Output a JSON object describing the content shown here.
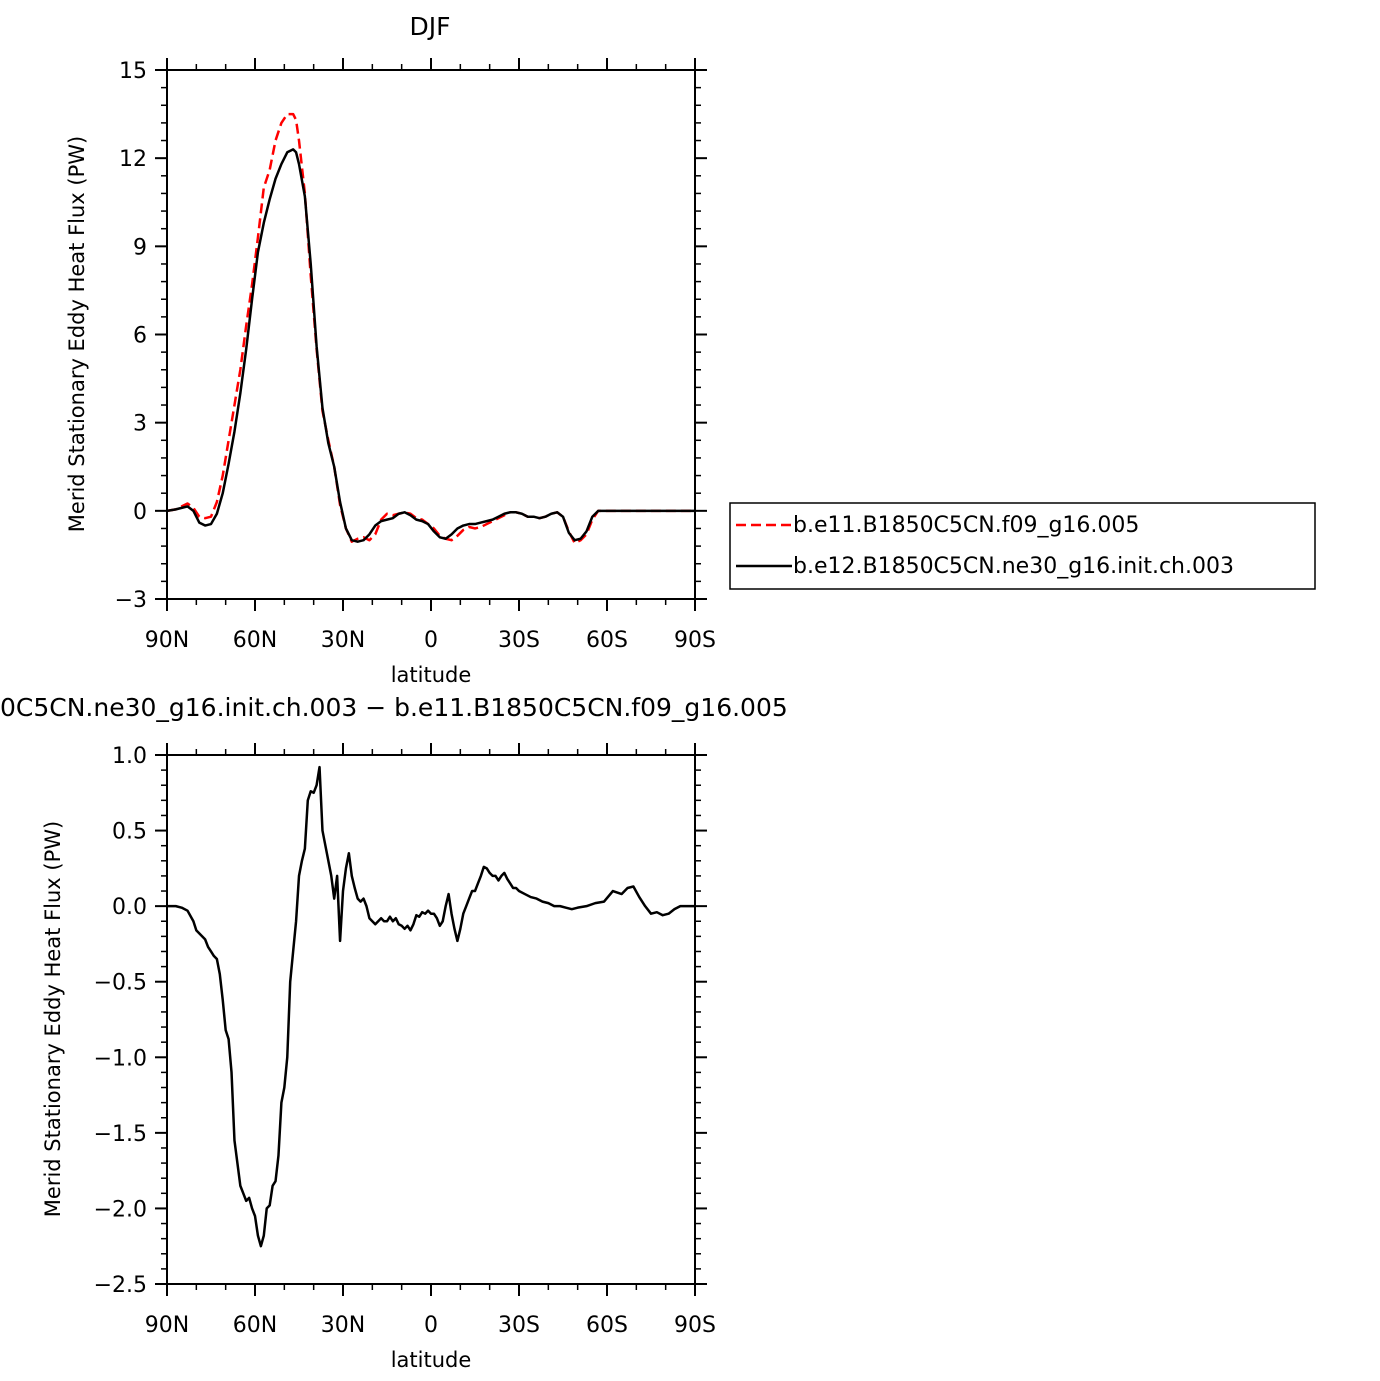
{
  "chart_data": [
    {
      "type": "line",
      "title": "DJF",
      "xlabel": "latitude",
      "ylabel": "Merid Stationary Eddy Heat Flux (PW)",
      "xlim": [
        90,
        -90
      ],
      "ylim": [
        -3,
        15
      ],
      "x_ticks": [
        90,
        60,
        30,
        0,
        -30,
        -60,
        -90
      ],
      "x_tick_labels": [
        "90N",
        "60N",
        "30N",
        "0",
        "30S",
        "60S",
        "90S"
      ],
      "y_ticks": [
        -3,
        0,
        3,
        6,
        9,
        12,
        15
      ],
      "y_tick_labels": [
        "−3",
        "0",
        "3",
        "6",
        "9",
        "12",
        "15"
      ],
      "legend_position": "right",
      "series": [
        {
          "name": "b.e11.B1850C5CN.f09_g16.005",
          "color": "#ff0000",
          "dash": "dashed",
          "x": [
            90,
            87,
            85,
            83,
            81,
            79,
            77,
            75,
            73,
            71,
            69,
            67,
            65,
            63,
            61,
            59,
            57,
            55,
            53,
            51,
            49,
            47,
            46,
            45,
            43,
            41,
            39,
            37,
            35,
            33,
            31,
            29,
            27,
            25,
            23,
            21,
            19,
            17,
            15,
            13,
            11,
            9,
            7,
            5,
            3,
            1,
            -1,
            -3,
            -5,
            -7,
            -9,
            -11,
            -13,
            -15,
            -17,
            -19,
            -21,
            -23,
            -25,
            -27,
            -29,
            -31,
            -33,
            -35,
            -37,
            -39,
            -41,
            -43,
            -45,
            -47,
            -49,
            -51,
            -53,
            -55,
            -57,
            -59,
            -61,
            -63,
            -65,
            -67,
            -69,
            -71,
            -73,
            -75,
            -77,
            -79,
            -81,
            -83,
            -85,
            -87,
            -90
          ],
          "y": [
            0.0,
            0.05,
            0.15,
            0.25,
            0.1,
            -0.2,
            -0.25,
            -0.2,
            0.3,
            1.2,
            2.4,
            3.6,
            4.8,
            6.3,
            7.7,
            9.3,
            11.0,
            11.6,
            12.6,
            13.2,
            13.5,
            13.5,
            13.3,
            12.6,
            10.8,
            8.0,
            5.5,
            3.4,
            2.4,
            1.5,
            0.2,
            -0.6,
            -1.05,
            -0.95,
            -0.9,
            -1.0,
            -0.8,
            -0.3,
            -0.1,
            -0.15,
            -0.1,
            -0.05,
            -0.1,
            -0.25,
            -0.3,
            -0.45,
            -0.6,
            -0.85,
            -0.95,
            -1.0,
            -0.85,
            -0.65,
            -0.55,
            -0.6,
            -0.55,
            -0.45,
            -0.35,
            -0.25,
            -0.15,
            -0.05,
            -0.05,
            -0.1,
            -0.2,
            -0.2,
            -0.25,
            -0.2,
            -0.1,
            -0.05,
            -0.2,
            -0.7,
            -1.1,
            -1.0,
            -0.8,
            -0.3,
            0.0,
            0.0,
            0.0,
            0.0,
            0.0,
            0.0,
            0.0,
            0.0,
            0.0,
            0.0,
            0.0,
            0.0,
            0.0,
            0.0,
            0.0,
            0.0,
            0.0
          ]
        },
        {
          "name": "b.e12.B1850C5CN.ne30_g16.init.ch.003",
          "color": "#000000",
          "dash": "solid",
          "x": [
            90,
            87,
            85,
            83,
            81,
            79,
            77,
            75,
            73,
            71,
            69,
            67,
            65,
            63,
            61,
            59,
            57,
            55,
            53,
            51,
            49,
            47,
            46,
            45,
            43,
            41,
            39,
            37,
            35,
            33,
            31,
            29,
            27,
            25,
            23,
            21,
            19,
            17,
            15,
            13,
            11,
            9,
            7,
            5,
            3,
            1,
            -1,
            -3,
            -5,
            -7,
            -9,
            -11,
            -13,
            -15,
            -17,
            -19,
            -21,
            -23,
            -25,
            -27,
            -29,
            -31,
            -33,
            -35,
            -37,
            -39,
            -41,
            -43,
            -45,
            -47,
            -49,
            -51,
            -53,
            -55,
            -57,
            -59,
            -61,
            -63,
            -65,
            -67,
            -69,
            -71,
            -73,
            -75,
            -77,
            -79,
            -81,
            -83,
            -85,
            -87,
            -90
          ],
          "y": [
            0.0,
            0.05,
            0.1,
            0.15,
            0.0,
            -0.4,
            -0.5,
            -0.45,
            -0.1,
            0.6,
            1.6,
            2.7,
            4.0,
            5.5,
            7.2,
            8.8,
            9.8,
            10.6,
            11.3,
            11.8,
            12.2,
            12.3,
            12.2,
            11.8,
            10.7,
            8.4,
            5.6,
            3.5,
            2.3,
            1.5,
            0.3,
            -0.6,
            -1.0,
            -1.05,
            -1.0,
            -0.8,
            -0.5,
            -0.35,
            -0.3,
            -0.25,
            -0.1,
            -0.05,
            -0.15,
            -0.3,
            -0.35,
            -0.45,
            -0.7,
            -0.9,
            -0.95,
            -0.8,
            -0.6,
            -0.5,
            -0.45,
            -0.45,
            -0.4,
            -0.35,
            -0.3,
            -0.2,
            -0.1,
            -0.05,
            -0.05,
            -0.1,
            -0.2,
            -0.2,
            -0.25,
            -0.2,
            -0.1,
            -0.05,
            -0.2,
            -0.75,
            -1.0,
            -0.95,
            -0.7,
            -0.2,
            0.0,
            0.0,
            0.0,
            0.0,
            0.0,
            0.0,
            0.0,
            0.0,
            0.0,
            0.0,
            0.0,
            0.0,
            0.0,
            0.0,
            0.0,
            0.0,
            0.0
          ]
        }
      ]
    },
    {
      "type": "line",
      "title": "0C5CN.ne30_g16.init.ch.003 − b.e11.B1850C5CN.f09_g16.005",
      "xlabel": "latitude",
      "ylabel": "Merid Stationary Eddy Heat Flux (PW)",
      "xlim": [
        90,
        -90
      ],
      "ylim": [
        -2.5,
        1.0
      ],
      "x_ticks": [
        90,
        60,
        30,
        0,
        -30,
        -60,
        -90
      ],
      "x_tick_labels": [
        "90N",
        "60N",
        "30N",
        "0",
        "30S",
        "60S",
        "90S"
      ],
      "y_ticks": [
        -2.5,
        -2.0,
        -1.5,
        -1.0,
        -0.5,
        0.0,
        0.5,
        1.0
      ],
      "y_tick_labels": [
        "−2.5",
        "−2.0",
        "−1.5",
        "−1.0",
        "−0.5",
        "0.0",
        "0.5",
        "1.0"
      ],
      "series": [
        {
          "color": "#000000",
          "dash": "solid",
          "x": [
            90,
            87,
            85,
            83,
            81,
            80,
            79,
            78,
            77,
            76,
            75,
            74,
            73,
            72,
            71,
            70,
            69,
            68,
            67,
            66,
            65,
            64,
            63,
            62,
            61,
            60,
            59,
            58,
            57,
            56,
            55,
            54,
            53,
            52,
            51,
            50,
            49,
            48,
            47,
            46,
            45,
            44,
            43,
            42,
            41,
            40,
            39,
            38,
            37,
            36,
            35,
            34,
            33,
            32,
            31,
            30,
            29,
            28,
            27,
            26,
            25,
            24,
            23,
            22,
            21,
            20,
            19,
            18,
            17,
            16,
            15,
            14,
            13,
            12,
            11,
            10,
            9,
            8,
            7,
            6,
            5,
            4,
            3,
            2,
            1,
            0,
            -1,
            -2,
            -3,
            -4,
            -5,
            -6,
            -7,
            -8,
            -9,
            -10,
            -11,
            -12,
            -13,
            -14,
            -15,
            -16,
            -17,
            -18,
            -19,
            -20,
            -21,
            -22,
            -23,
            -24,
            -25,
            -26,
            -27,
            -28,
            -29,
            -30,
            -32,
            -34,
            -36,
            -38,
            -40,
            -42,
            -44,
            -46,
            -48,
            -50,
            -53,
            -56,
            -59,
            -62,
            -65,
            -67,
            -69,
            -71,
            -73,
            -75,
            -77,
            -79,
            -81,
            -83,
            -85,
            -87,
            -90
          ],
          "y": [
            0.0,
            0.0,
            -0.01,
            -0.03,
            -0.1,
            -0.16,
            -0.18,
            -0.2,
            -0.22,
            -0.27,
            -0.3,
            -0.33,
            -0.35,
            -0.45,
            -0.62,
            -0.82,
            -0.88,
            -1.1,
            -1.55,
            -1.7,
            -1.85,
            -1.9,
            -1.95,
            -1.93,
            -2.0,
            -2.05,
            -2.18,
            -2.25,
            -2.18,
            -2.0,
            -1.98,
            -1.85,
            -1.82,
            -1.65,
            -1.3,
            -1.2,
            -1.0,
            -0.5,
            -0.3,
            -0.1,
            0.2,
            0.3,
            0.38,
            0.7,
            0.76,
            0.75,
            0.8,
            0.92,
            0.5,
            0.4,
            0.3,
            0.2,
            0.05,
            0.2,
            -0.23,
            0.1,
            0.25,
            0.35,
            0.2,
            0.12,
            0.05,
            0.03,
            0.05,
            0.0,
            -0.08,
            -0.1,
            -0.12,
            -0.1,
            -0.08,
            -0.1,
            -0.1,
            -0.07,
            -0.1,
            -0.08,
            -0.12,
            -0.13,
            -0.15,
            -0.13,
            -0.16,
            -0.12,
            -0.06,
            -0.07,
            -0.04,
            -0.05,
            -0.03,
            -0.05,
            -0.05,
            -0.08,
            -0.13,
            -0.1,
            0.0,
            0.08,
            -0.05,
            -0.15,
            -0.23,
            -0.15,
            -0.05,
            0.0,
            0.05,
            0.1,
            0.1,
            0.15,
            0.2,
            0.26,
            0.25,
            0.22,
            0.2,
            0.2,
            0.17,
            0.2,
            0.22,
            0.18,
            0.15,
            0.12,
            0.12,
            0.1,
            0.08,
            0.06,
            0.05,
            0.03,
            0.02,
            0.0,
            0.0,
            -0.01,
            -0.02,
            -0.01,
            0.0,
            0.02,
            0.03,
            0.1,
            0.08,
            0.12,
            0.13,
            0.06,
            0.0,
            -0.05,
            -0.04,
            -0.06,
            -0.05,
            -0.02,
            0.0,
            0.0,
            0.0
          ]
        }
      ]
    }
  ]
}
